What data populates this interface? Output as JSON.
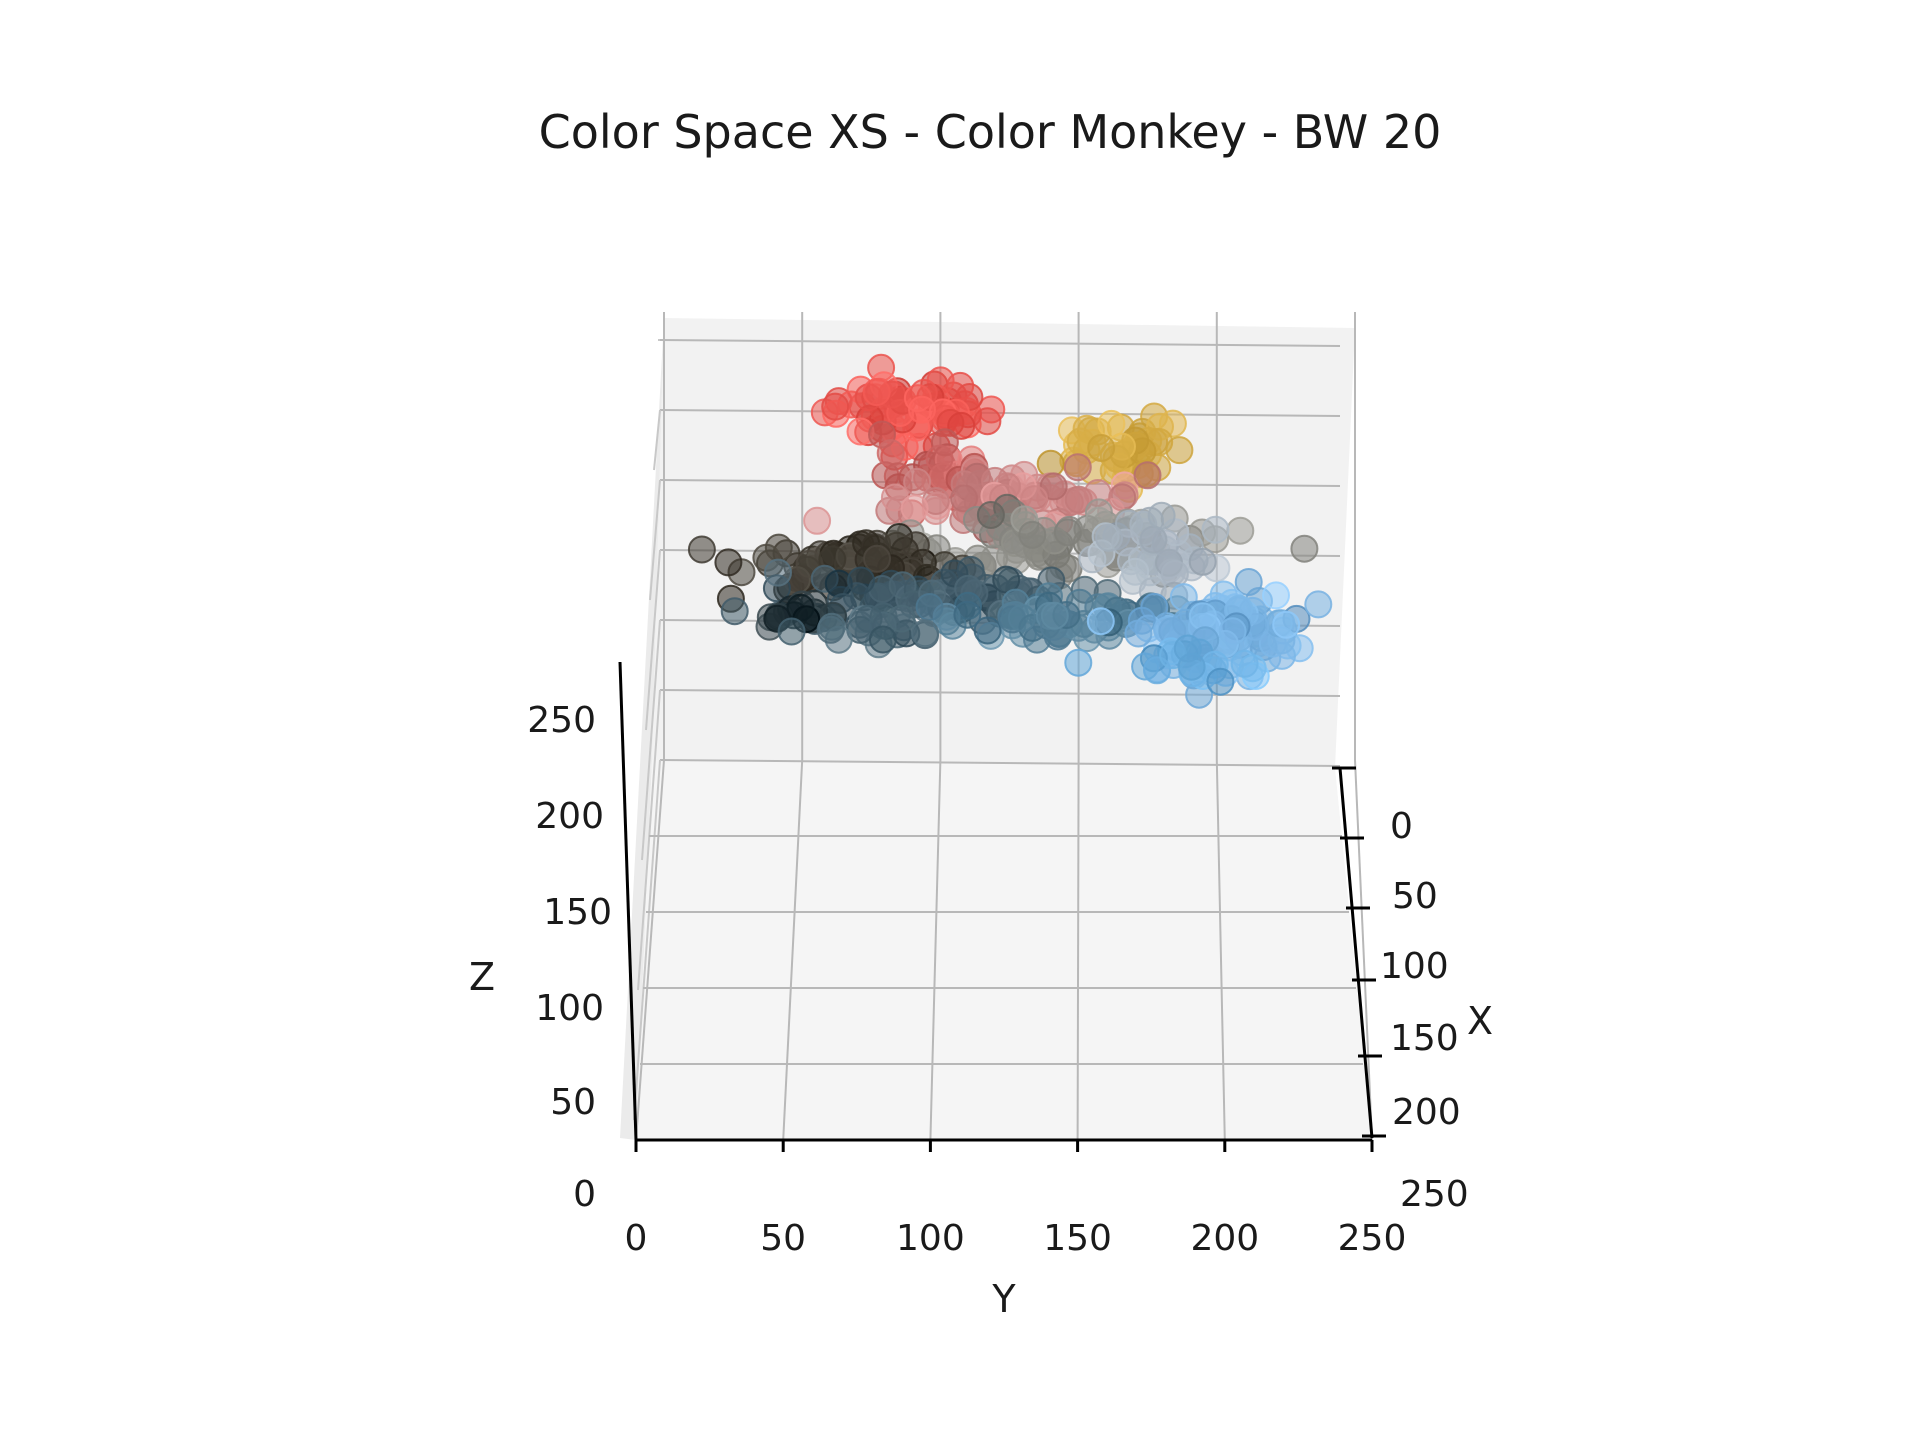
{
  "chart_data": {
    "type": "scatter",
    "projection": "3d",
    "title": "Color Space XS - Color Monkey - BW 20",
    "xlabel": "X",
    "ylabel": "Y",
    "zlabel": "Z",
    "xlim": [
      0,
      250
    ],
    "ylim": [
      0,
      250
    ],
    "zlim": [
      0,
      250
    ],
    "x_ticks": [
      "0",
      "50",
      "100",
      "150",
      "200",
      "250"
    ],
    "y_ticks": [
      "0",
      "50",
      "100",
      "150",
      "200",
      "250"
    ],
    "z_ticks": [
      "0",
      "50",
      "100",
      "150",
      "200",
      "250"
    ],
    "grid": true,
    "legend": "none",
    "point_color_source": "RGB value of each point",
    "clusters": [
      {
        "y_center": 88,
        "z_center": 236,
        "spread_y": 15,
        "spread_z": 10,
        "count": 70,
        "color": "#e8504a"
      },
      {
        "y_center": 166,
        "z_center": 214,
        "spread_y": 12,
        "spread_z": 10,
        "count": 45,
        "color": "#d6ac45"
      },
      {
        "y_center": 100,
        "z_center": 200,
        "spread_y": 10,
        "spread_z": 10,
        "count": 28,
        "color": "#c45e5c"
      },
      {
        "y_center": 130,
        "z_center": 185,
        "spread_y": 22,
        "spread_z": 8,
        "count": 65,
        "color": "#c88080"
      },
      {
        "y_center": 140,
        "z_center": 160,
        "spread_y": 28,
        "spread_z": 9,
        "count": 85,
        "color": "#8a8a84"
      },
      {
        "y_center": 65,
        "z_center": 148,
        "spread_y": 18,
        "spread_z": 8,
        "count": 95,
        "color": "#3a352c"
      },
      {
        "y_center": 180,
        "z_center": 150,
        "spread_y": 12,
        "spread_z": 12,
        "count": 40,
        "color": "#a8b4c0"
      },
      {
        "y_center": 95,
        "z_center": 130,
        "spread_y": 28,
        "spread_z": 8,
        "count": 80,
        "color": "#3e5866"
      },
      {
        "y_center": 145,
        "z_center": 115,
        "spread_y": 22,
        "spread_z": 6,
        "count": 60,
        "color": "#4f7a92"
      },
      {
        "y_center": 200,
        "z_center": 110,
        "spread_y": 14,
        "spread_z": 12,
        "count": 105,
        "color": "#78b2e2"
      },
      {
        "y_center": 48,
        "z_center": 118,
        "spread_y": 8,
        "spread_z": 4,
        "count": 14,
        "color": "#233238"
      },
      {
        "y_center": 80,
        "z_center": 110,
        "spread_y": 12,
        "spread_z": 5,
        "count": 18,
        "color": "#4a6674"
      },
      {
        "y_center": 195,
        "z_center": 90,
        "spread_y": 12,
        "spread_z": 5,
        "count": 18,
        "color": "#6aaee0"
      }
    ]
  }
}
